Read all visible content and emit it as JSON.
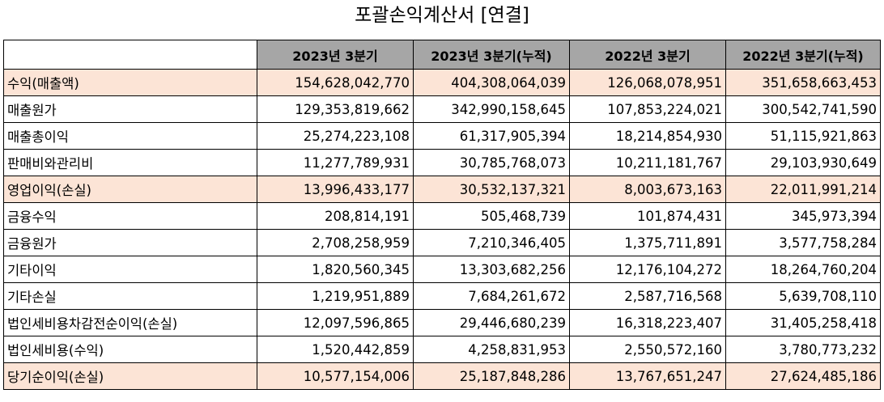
{
  "title": "포괄손익계산서 [연결]",
  "table": {
    "headers": [
      "2023년 3분기",
      "2023년 3분기(누적)",
      "2022년 3분기",
      "2022년 3분기(누적)"
    ],
    "rows": [
      {
        "label": "수익(매출액)",
        "highlight": true,
        "values": [
          "154,628,042,770",
          "404,308,064,039",
          "126,068,078,951",
          "351,658,663,453"
        ]
      },
      {
        "label": "매출원가",
        "highlight": false,
        "values": [
          "129,353,819,662",
          "342,990,158,645",
          "107,853,224,021",
          "300,542,741,590"
        ]
      },
      {
        "label": "매출총이익",
        "highlight": false,
        "values": [
          "25,274,223,108",
          "61,317,905,394",
          "18,214,854,930",
          "51,115,921,863"
        ]
      },
      {
        "label": "판매비와관리비",
        "highlight": false,
        "values": [
          "11,277,789,931",
          "30,785,768,073",
          "10,211,181,767",
          "29,103,930,649"
        ]
      },
      {
        "label": "영업이익(손실)",
        "highlight": true,
        "values": [
          "13,996,433,177",
          "30,532,137,321",
          "8,003,673,163",
          "22,011,991,214"
        ]
      },
      {
        "label": "금융수익",
        "highlight": false,
        "values": [
          "208,814,191",
          "505,468,739",
          "101,874,431",
          "345,973,394"
        ]
      },
      {
        "label": "금융원가",
        "highlight": false,
        "values": [
          "2,708,258,959",
          "7,210,346,405",
          "1,375,711,891",
          "3,577,758,284"
        ]
      },
      {
        "label": "기타이익",
        "highlight": false,
        "values": [
          "1,820,560,345",
          "13,303,682,256",
          "12,176,104,272",
          "18,264,760,204"
        ]
      },
      {
        "label": "기타손실",
        "highlight": false,
        "values": [
          "1,219,951,889",
          "7,684,261,672",
          "2,587,716,568",
          "5,639,708,110"
        ]
      },
      {
        "label": "법인세비용차감전순이익(손실)",
        "highlight": false,
        "values": [
          "12,097,596,865",
          "29,446,680,239",
          "16,318,223,407",
          "31,405,258,418"
        ]
      },
      {
        "label": "법인세비용(수익)",
        "highlight": false,
        "values": [
          "1,520,442,859",
          "4,258,831,953",
          "2,550,572,160",
          "3,780,773,232"
        ]
      },
      {
        "label": "당기순이익(손실)",
        "highlight": true,
        "values": [
          "10,577,154,006",
          "25,187,848,286",
          "13,767,651,247",
          "27,624,485,186"
        ]
      }
    ]
  }
}
